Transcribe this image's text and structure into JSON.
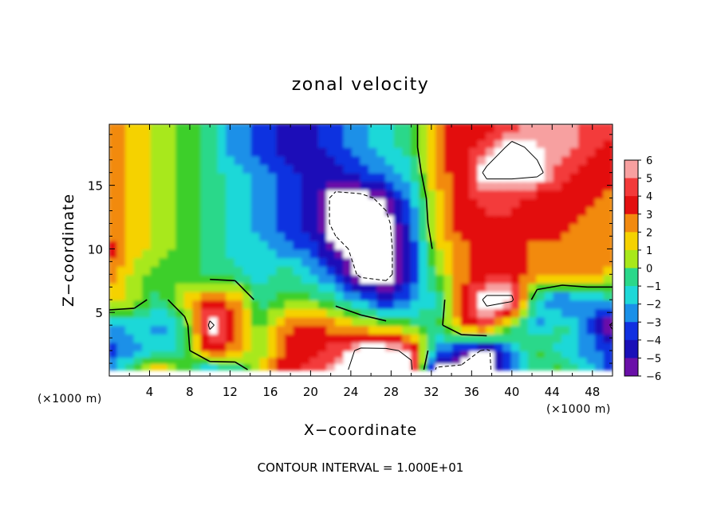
{
  "chart_data": {
    "type": "heatmap",
    "title": "zonal velocity",
    "xlabel": "X−coordinate",
    "ylabel": "Z−coordinate",
    "x_unit_left": "(×1000 m)",
    "x_unit_right": "(×1000 m)",
    "footer": "CONTOUR INTERVAL = 1.000E+01",
    "xlim": [
      0,
      50
    ],
    "ylim": [
      0,
      19.8
    ],
    "xticks": [
      4,
      8,
      12,
      16,
      20,
      24,
      28,
      32,
      36,
      40,
      44,
      48
    ],
    "yticks": [
      5,
      10,
      15
    ],
    "colorbar": {
      "ticks": [
        6,
        5,
        4,
        3,
        2,
        1,
        0,
        -1,
        -2,
        -3,
        -4,
        -5,
        -6
      ],
      "tick_labels": [
        "6",
        "5",
        "4",
        "3",
        "2",
        "1",
        "0",
        "−1",
        "−2",
        "−3",
        "−4",
        "−5",
        "−6"
      ],
      "range": [
        -6,
        6
      ],
      "colors": {
        "6": "#f7a0a0",
        "5": "#f33a3a",
        "4": "#e31010",
        "3": "#f28a10",
        "2": "#f5d200",
        "1": "#a8e81a",
        "0": "#3dcf2a",
        "-1": "#2ad88a",
        "-2": "#1ed8d8",
        "-3": "#1a90e8",
        "-4": "#1030e0",
        "-5": "#1a10b8",
        "-6": "#6a10a8"
      },
      "out_of_range_color": "#ffffff"
    },
    "field_grid": {
      "x": [
        0,
        2.5,
        5,
        7.5,
        10,
        12.5,
        15,
        17.5,
        20,
        22.5,
        25,
        27.5,
        30,
        32.5,
        35,
        37.5,
        40,
        42.5,
        45,
        47.5,
        50
      ],
      "z": [
        0.5,
        2,
        4,
        6,
        8,
        10,
        12,
        14,
        16,
        18,
        19.8
      ],
      "values": [
        [
          -3,
          0,
          3,
          0,
          -3,
          -2,
          2,
          4,
          5,
          6,
          7,
          7,
          7,
          -7,
          -7,
          -7,
          -4,
          -1,
          0,
          -2,
          -4
        ],
        [
          -4,
          -3,
          -2,
          -1,
          4,
          3,
          0,
          4,
          4,
          5,
          7,
          7,
          6,
          -3,
          -5,
          -7,
          -3,
          0,
          -2,
          -3,
          -4
        ],
        [
          -3,
          -2,
          -3,
          -1,
          7,
          4,
          0,
          3,
          4,
          3,
          2,
          1,
          0,
          -1,
          3,
          5,
          0,
          -3,
          -1,
          -3,
          -7
        ],
        [
          2,
          1,
          -1,
          2,
          4,
          3,
          -1,
          0,
          0,
          -1,
          -3,
          -5,
          -3,
          -2,
          4,
          7,
          7,
          -2,
          -4,
          -3,
          -2
        ],
        [
          3,
          1,
          0,
          0,
          -1,
          -1,
          -2,
          -1,
          -2,
          -4,
          -7,
          -7,
          -5,
          0,
          3,
          4,
          4,
          3,
          3,
          3,
          2
        ],
        [
          4,
          2,
          1,
          0,
          -1,
          -2,
          -2,
          -3,
          -4,
          -6,
          -7,
          -7,
          -5,
          1,
          3,
          4,
          4,
          3,
          3,
          3,
          3
        ],
        [
          3,
          2,
          1,
          0,
          -1,
          -2,
          -3,
          -4,
          -5,
          -7,
          -7,
          -7,
          -4,
          2,
          4,
          4,
          4,
          4,
          4,
          3,
          3
        ],
        [
          3,
          2,
          1,
          0,
          -1,
          -2,
          -3,
          -4,
          -5,
          -7,
          -7,
          -6,
          -3,
          2,
          4,
          5,
          5,
          4,
          4,
          4,
          3
        ],
        [
          3,
          2,
          1,
          0,
          -1,
          -2,
          -3,
          -4,
          -5,
          -5,
          -4,
          -3,
          -2,
          3,
          4,
          7,
          7,
          7,
          5,
          4,
          4
        ],
        [
          3,
          2,
          1,
          0,
          -1,
          -3,
          -4,
          -5,
          -5,
          -4,
          -3,
          -2,
          -1,
          3,
          4,
          5,
          7,
          6,
          6,
          5,
          4
        ],
        [
          3,
          2,
          1,
          0,
          -1,
          -3,
          -4,
          -5,
          -5,
          -4,
          -3,
          -2,
          -1,
          3,
          4,
          4,
          5,
          6,
          6,
          5,
          5
        ]
      ]
    },
    "contour_levels": [
      0,
      -10,
      10
    ]
  }
}
